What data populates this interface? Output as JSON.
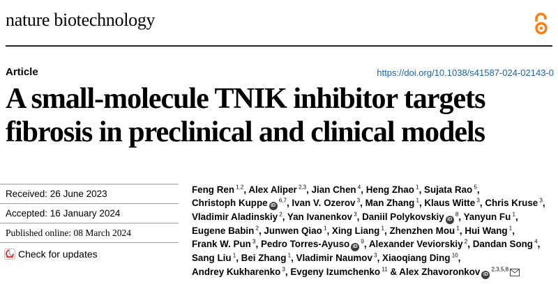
{
  "journal": "nature biotechnology",
  "article_type": "Article",
  "doi": "https://doi.org/10.1038/s41587-024-02143-0",
  "title": "A small-molecule TNIK inhibitor targets fibrosis in preclinical and clinical models",
  "dates": {
    "received_label": "Received: ",
    "received": "26 June 2023",
    "accepted_label": "Accepted: ",
    "accepted": "16 January 2024",
    "published_label": "Published online: ",
    "published": "08 March 2024"
  },
  "check_updates": "Check for updates",
  "authors": [
    {
      "name": "Feng Ren",
      "aff": "1,2"
    },
    {
      "name": "Alex Aliper",
      "aff": "2,3"
    },
    {
      "name": "Jian Chen",
      "aff": "4"
    },
    {
      "name": "Heng Zhao",
      "aff": "1"
    },
    {
      "name": "Sujata Rao",
      "aff": "5"
    },
    {
      "name": "Christoph Kuppe",
      "aff": "6,7",
      "orcid": true
    },
    {
      "name": "Ivan V. Ozerov",
      "aff": "3"
    },
    {
      "name": "Man Zhang",
      "aff": "1"
    },
    {
      "name": "Klaus Witte",
      "aff": "3"
    },
    {
      "name": "Chris Kruse",
      "aff": "3"
    },
    {
      "name": "Vladimir Aladinskiy",
      "aff": "2"
    },
    {
      "name": "Yan Ivanenkov",
      "aff": "3"
    },
    {
      "name": "Daniil Polykovskiy",
      "aff": "8",
      "orcid": true
    },
    {
      "name": "Yanyun Fu",
      "aff": "1"
    },
    {
      "name": "Eugene Babin",
      "aff": "2"
    },
    {
      "name": "Junwen Qiao",
      "aff": "1"
    },
    {
      "name": "Xing Liang",
      "aff": "1"
    },
    {
      "name": "Zhenzhen Mou",
      "aff": "1"
    },
    {
      "name": "Hui Wang",
      "aff": "1"
    },
    {
      "name": "Frank W. Pun",
      "aff": "3"
    },
    {
      "name": "Pedro Torres-Ayuso",
      "aff": "9",
      "orcid": true
    },
    {
      "name": "Alexander Veviorskiy",
      "aff": "2"
    },
    {
      "name": "Dandan Song",
      "aff": "4"
    },
    {
      "name": "Sang Liu",
      "aff": "1"
    },
    {
      "name": "Bei Zhang",
      "aff": "1"
    },
    {
      "name": "Vladimir Naumov",
      "aff": "3"
    },
    {
      "name": "Xiaoqiang Ding",
      "aff": "10"
    },
    {
      "name": "Andrey Kukharenko",
      "aff": "3"
    },
    {
      "name": "Evgeny Izumchenko",
      "aff": "11"
    },
    {
      "name": "Alex Zhavoronkov",
      "aff": "2,3,5,8",
      "orcid": true,
      "email": true
    }
  ],
  "icons": {
    "open_access": "open-access-icon",
    "check_updates": "check-for-updates-icon",
    "orcid": "orcid-icon",
    "email": "envelope-icon"
  },
  "colors": {
    "open_access": "#f68212",
    "doi_link": "#1a62a8",
    "orcid_badge": "#3d3d3d"
  }
}
